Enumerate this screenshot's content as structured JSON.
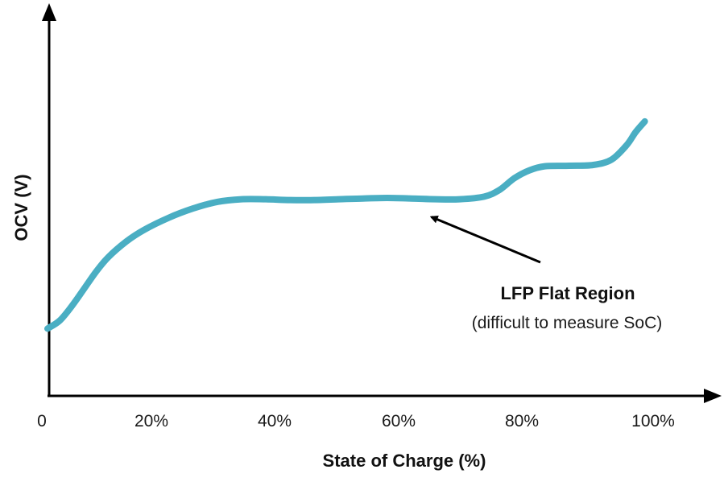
{
  "chart_data": {
    "type": "line",
    "xlabel": "State of Charge (%)",
    "ylabel": "OCV (V)",
    "x_ticks": [
      "0",
      "20%",
      "40%",
      "60%",
      "80%",
      "100%"
    ],
    "xlim": [
      0,
      100
    ],
    "ylim": [
      0,
      100
    ],
    "y_ticks_shown": false,
    "grid": false,
    "series": [
      {
        "color": "#4aaec3",
        "points": [
          [
            0,
            25.5
          ],
          [
            2,
            28.5
          ],
          [
            4,
            34
          ],
          [
            6,
            40.5
          ],
          [
            8,
            47
          ],
          [
            10,
            52.5
          ],
          [
            13,
            58.5
          ],
          [
            16,
            63
          ],
          [
            20,
            67.5
          ],
          [
            24,
            71
          ],
          [
            28,
            73.5
          ],
          [
            32,
            74.5
          ],
          [
            36,
            74.5
          ],
          [
            40,
            74.2
          ],
          [
            44,
            74.2
          ],
          [
            48,
            74.5
          ],
          [
            52,
            74.8
          ],
          [
            56,
            75
          ],
          [
            60,
            74.8
          ],
          [
            64,
            74.5
          ],
          [
            68,
            74.5
          ],
          [
            72,
            75.5
          ],
          [
            74.5,
            78
          ],
          [
            77,
            82.5
          ],
          [
            79.5,
            85.5
          ],
          [
            82,
            87
          ],
          [
            86,
            87.2
          ],
          [
            90,
            87.5
          ],
          [
            93,
            89.5
          ],
          [
            95.5,
            95
          ],
          [
            97,
            100
          ],
          [
            98.5,
            104
          ]
        ]
      }
    ],
    "annotation": {
      "title": "LFP Flat Region",
      "subtitle": "(difficult to measure SoC)",
      "points_to_x": 62.5
    }
  }
}
